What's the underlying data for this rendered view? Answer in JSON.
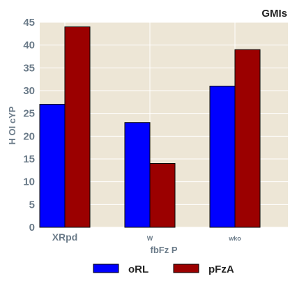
{
  "chart_data": {
    "type": "bar",
    "title": "GMIs",
    "xlabel": "fbFz P",
    "ylabel": "H  OI  cYP",
    "categories": [
      "XRpd",
      "W",
      "wko"
    ],
    "series": [
      {
        "name": "oRL",
        "values": [
          27,
          23,
          31
        ],
        "color": "#0000ff"
      },
      {
        "name": "pFzA",
        "values": [
          44,
          14,
          39
        ],
        "color": "#9b0000"
      }
    ],
    "ylim": [
      0,
      45
    ],
    "yticks": [
      0,
      5,
      10,
      15,
      20,
      25,
      30,
      35,
      40,
      45
    ],
    "grid": true,
    "plot_background": "#ede6d6",
    "legend_position": "bottom"
  }
}
